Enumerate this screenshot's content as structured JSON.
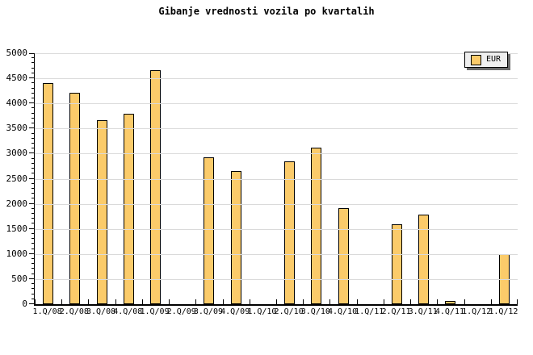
{
  "title": "Gibanje vrednosti vozila po kvartalih",
  "legend": {
    "label": "EUR",
    "position": "top-right",
    "background": "#EFEFEF",
    "shadow_color": "#6B6B6B"
  },
  "colors": {
    "bar_fill": "#FBCB6A",
    "bar_border": "#000000",
    "grid": "#DADADA",
    "axis": "#000000",
    "background": "#FFFFFF"
  },
  "chart_data": {
    "type": "bar",
    "title": "Gibanje vrednosti vozila po kvartalih",
    "xlabel": "",
    "ylabel": "",
    "series_name": "EUR",
    "categories": [
      "1.Q/08",
      "2.Q/08",
      "3.Q/08",
      "4.Q/08",
      "1.Q/09",
      "2.Q/09",
      "3.Q/09",
      "4.Q/09",
      "1.Q/10",
      "2.Q/10",
      "3.Q/10",
      "4.Q/10",
      "1.Q/11",
      "2.Q/11",
      "3.Q/11",
      "4.Q/11",
      "1.Q/12",
      "1.Q/12"
    ],
    "values": [
      4400,
      4210,
      3660,
      3790,
      4660,
      null,
      2920,
      2660,
      null,
      2850,
      3120,
      1920,
      null,
      1590,
      1780,
      60,
      null,
      1000
    ],
    "ylim": [
      0,
      5000
    ],
    "y_ticks": [
      0,
      500,
      1000,
      1500,
      2000,
      2500,
      3000,
      3500,
      4000,
      4500,
      5000
    ],
    "y_minor_step": 100,
    "grid": "horizontal-major",
    "legend_position": "top-right"
  }
}
